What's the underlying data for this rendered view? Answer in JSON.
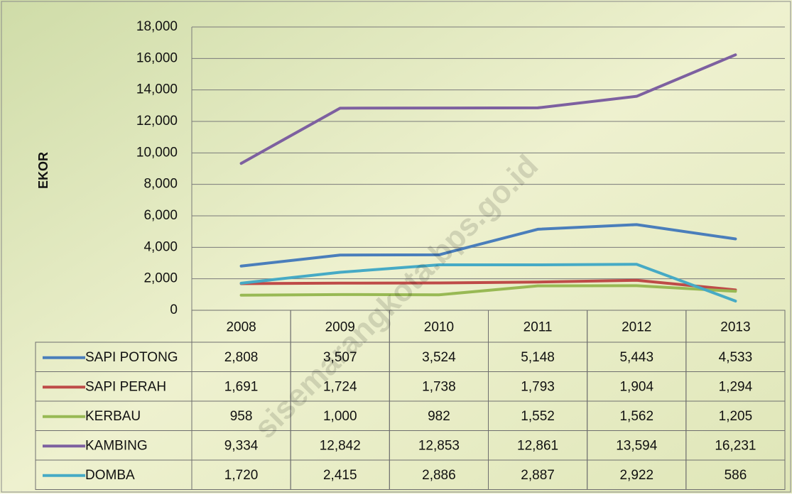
{
  "chart_data": {
    "type": "line",
    "y_label": "EKOR",
    "watermark": "sisemarangkota.bps.go.id",
    "categories": [
      "2008",
      "2009",
      "2010",
      "2011",
      "2012",
      "2013"
    ],
    "series": [
      {
        "name": "SAPI POTONG",
        "color": "#4a7ebb",
        "values": [
          2808,
          3507,
          3524,
          5148,
          5443,
          4533
        ],
        "value_labels": [
          "2,808",
          "3,507",
          "3,524",
          "5,148",
          "5,443",
          "4,533"
        ]
      },
      {
        "name": "SAPI PERAH",
        "color": "#be4b48",
        "values": [
          1691,
          1724,
          1738,
          1793,
          1904,
          1294
        ],
        "value_labels": [
          "1,691",
          "1,724",
          "1,738",
          "1,793",
          "1,904",
          "1,294"
        ]
      },
      {
        "name": "KERBAU",
        "color": "#98b954",
        "values": [
          958,
          1000,
          982,
          1552,
          1562,
          1205
        ],
        "value_labels": [
          "958",
          "1,000",
          "982",
          "1,552",
          "1,562",
          "1,205"
        ]
      },
      {
        "name": "KAMBING",
        "color": "#7d60a0",
        "values": [
          9334,
          12842,
          12853,
          12861,
          13594,
          16231
        ],
        "value_labels": [
          "9,334",
          "12,842",
          "12,853",
          "12,861",
          "13,594",
          "16,231"
        ]
      },
      {
        "name": "DOMBA",
        "color": "#46aac5",
        "values": [
          1720,
          2415,
          2886,
          2887,
          2922,
          586
        ],
        "value_labels": [
          "1,720",
          "2,415",
          "2,886",
          "2,887",
          "2,922",
          "586"
        ]
      }
    ],
    "ylim": [
      0,
      18000
    ],
    "yticks": [
      0,
      {
        "value": 2000,
        "label": "2,000"
      },
      {
        "value": 4000,
        "label": "4,000"
      },
      {
        "value": 6000,
        "label": "6,000"
      },
      {
        "value": 8000,
        "label": "8,000"
      },
      {
        "value": 10000,
        "label": "10,000"
      },
      {
        "value": 12000,
        "label": "12,000"
      },
      {
        "value": 14000,
        "label": "14,000"
      },
      {
        "value": 16000,
        "label": "16,000"
      },
      {
        "value": 18000,
        "label": "18,000"
      }
    ],
    "grid": true
  }
}
